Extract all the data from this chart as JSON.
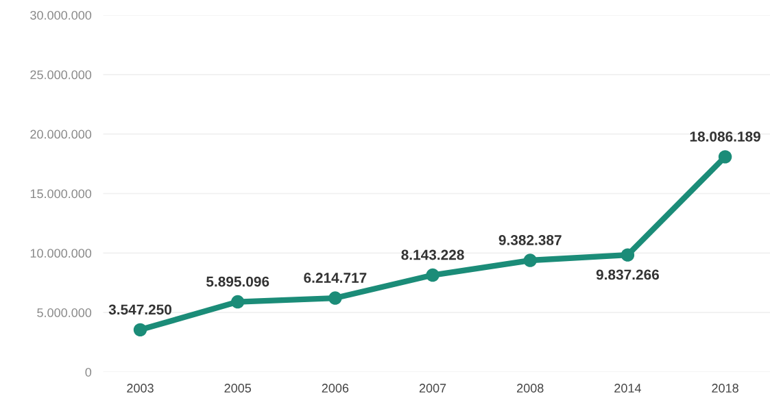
{
  "chart_data": {
    "type": "line",
    "categories": [
      "2003",
      "2005",
      "2006",
      "2007",
      "2008",
      "2014",
      "2018"
    ],
    "series": [
      {
        "color": "#1b8c78",
        "values": [
          3547250,
          5895096,
          6214717,
          8143228,
          9382387,
          9837266,
          18086189
        ],
        "value_labels": [
          "3.547.250",
          "5.895.096",
          "6.214.717",
          "8.143.228",
          "9.382.387",
          "9.837.266",
          "18.086.189"
        ]
      }
    ],
    "ylim": [
      0,
      30000000
    ],
    "yticks": [
      {
        "value": 0,
        "label": "0"
      },
      {
        "value": 5000000,
        "label": "5.000.000"
      },
      {
        "value": 10000000,
        "label": "10.000.000"
      },
      {
        "value": 15000000,
        "label": "15.000.000"
      },
      {
        "value": 20000000,
        "label": "20.000.000"
      },
      {
        "value": 25000000,
        "label": "25.000.000"
      },
      {
        "value": 30000000,
        "label": "30.000.000"
      }
    ],
    "grid": "y",
    "marker": "circle",
    "line_style": "solid",
    "legend": false
  }
}
